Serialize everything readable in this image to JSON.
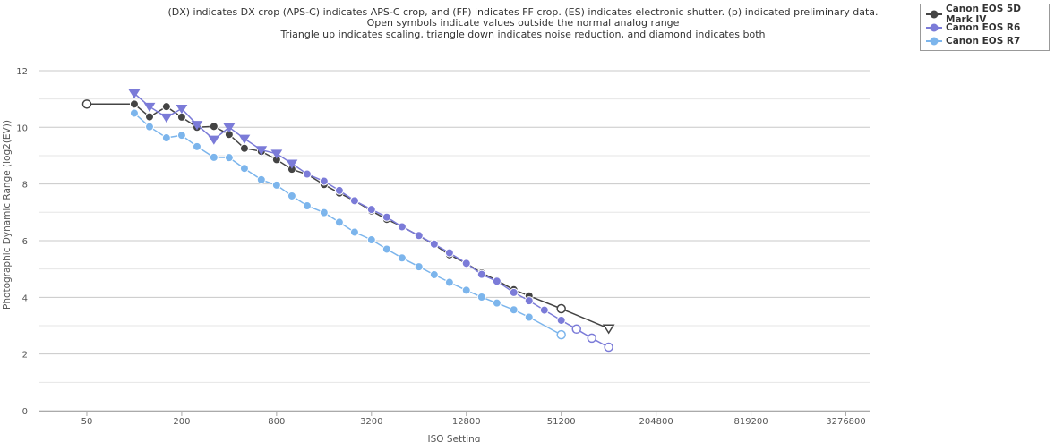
{
  "chart_data": {
    "type": "line",
    "title_lines": [
      "(DX) indicates DX crop (APS-C) indicates APS-C crop, and (FF) indicates FF crop. (ES) indicates electronic shutter. (p) indicated preliminary data.",
      "Open symbols indicate values outside the normal analog range",
      "Triangle up indicates scaling, triangle down indicates noise reduction, and diamond indicates both"
    ],
    "xlabel": "ISO Setting",
    "ylabel": "Photographic Dynamic Range (log2(EV))",
    "x_scale": "log2",
    "x_ticks": [
      50,
      200,
      800,
      3200,
      12800,
      51200,
      204800,
      819200,
      3276800
    ],
    "x_tick_labels": [
      "50",
      "200",
      "800",
      "3200",
      "12800",
      "51200",
      "204800",
      "819200",
      "3276800"
    ],
    "x_range": [
      25,
      4634000
    ],
    "ylim": [
      0,
      12.5
    ],
    "y_ticks": [
      0,
      2,
      4,
      6,
      8,
      10,
      12
    ],
    "y_tick_labels": [
      "0",
      "2",
      "4",
      "6",
      "8",
      "10",
      "12"
    ],
    "grid": true,
    "legend_position": "top-right",
    "series": [
      {
        "name": "Canon EOS 5D Mark IV",
        "color": "#444444",
        "points": [
          {
            "x": 50,
            "y": 10.82,
            "marker": "open-circle"
          },
          {
            "x": 100,
            "y": 10.82,
            "marker": "circle"
          },
          {
            "x": 125,
            "y": 10.37,
            "marker": "circle"
          },
          {
            "x": 160,
            "y": 10.73,
            "marker": "circle"
          },
          {
            "x": 200,
            "y": 10.36,
            "marker": "circle"
          },
          {
            "x": 250,
            "y": 10.0,
            "marker": "circle"
          },
          {
            "x": 320,
            "y": 10.03,
            "marker": "circle"
          },
          {
            "x": 400,
            "y": 9.75,
            "marker": "circle"
          },
          {
            "x": 500,
            "y": 9.26,
            "marker": "circle"
          },
          {
            "x": 640,
            "y": 9.15,
            "marker": "circle"
          },
          {
            "x": 800,
            "y": 8.86,
            "marker": "circle"
          },
          {
            "x": 1000,
            "y": 8.52,
            "marker": "circle"
          },
          {
            "x": 1250,
            "y": 8.34,
            "marker": "circle"
          },
          {
            "x": 1600,
            "y": 7.98,
            "marker": "circle"
          },
          {
            "x": 2000,
            "y": 7.68,
            "marker": "circle"
          },
          {
            "x": 2500,
            "y": 7.41,
            "marker": "circle"
          },
          {
            "x": 3200,
            "y": 7.05,
            "marker": "circle"
          },
          {
            "x": 4000,
            "y": 6.75,
            "marker": "circle"
          },
          {
            "x": 5000,
            "y": 6.5,
            "marker": "circle"
          },
          {
            "x": 6400,
            "y": 6.17,
            "marker": "circle"
          },
          {
            "x": 8000,
            "y": 5.86,
            "marker": "circle"
          },
          {
            "x": 10000,
            "y": 5.5,
            "marker": "circle"
          },
          {
            "x": 12800,
            "y": 5.2,
            "marker": "circle"
          },
          {
            "x": 16000,
            "y": 4.86,
            "marker": "circle"
          },
          {
            "x": 20000,
            "y": 4.6,
            "marker": "circle"
          },
          {
            "x": 25600,
            "y": 4.27,
            "marker": "circle"
          },
          {
            "x": 32000,
            "y": 4.05,
            "marker": "circle"
          },
          {
            "x": 51200,
            "y": 3.6,
            "marker": "open-circle"
          },
          {
            "x": 102400,
            "y": 2.9,
            "marker": "open-triangle-down"
          }
        ]
      },
      {
        "name": "Canon EOS R6",
        "color": "#7b7bd8",
        "points": [
          {
            "x": 100,
            "y": 11.2,
            "marker": "triangle-down"
          },
          {
            "x": 125,
            "y": 10.73,
            "marker": "triangle-down"
          },
          {
            "x": 160,
            "y": 10.35,
            "marker": "triangle-down"
          },
          {
            "x": 200,
            "y": 10.66,
            "marker": "triangle-down"
          },
          {
            "x": 250,
            "y": 10.09,
            "marker": "triangle-down"
          },
          {
            "x": 320,
            "y": 9.57,
            "marker": "triangle-down"
          },
          {
            "x": 400,
            "y": 10.0,
            "marker": "triangle-down"
          },
          {
            "x": 500,
            "y": 9.6,
            "marker": "triangle-down"
          },
          {
            "x": 640,
            "y": 9.2,
            "marker": "triangle-down"
          },
          {
            "x": 800,
            "y": 9.07,
            "marker": "triangle-down"
          },
          {
            "x": 1000,
            "y": 8.72,
            "marker": "triangle-down"
          },
          {
            "x": 1250,
            "y": 8.35,
            "marker": "circle"
          },
          {
            "x": 1600,
            "y": 8.1,
            "marker": "circle"
          },
          {
            "x": 2000,
            "y": 7.77,
            "marker": "circle"
          },
          {
            "x": 2500,
            "y": 7.41,
            "marker": "circle"
          },
          {
            "x": 3200,
            "y": 7.1,
            "marker": "circle"
          },
          {
            "x": 4000,
            "y": 6.83,
            "marker": "circle"
          },
          {
            "x": 5000,
            "y": 6.49,
            "marker": "circle"
          },
          {
            "x": 6400,
            "y": 6.18,
            "marker": "circle"
          },
          {
            "x": 8000,
            "y": 5.88,
            "marker": "circle"
          },
          {
            "x": 10000,
            "y": 5.57,
            "marker": "circle"
          },
          {
            "x": 12800,
            "y": 5.2,
            "marker": "circle"
          },
          {
            "x": 16000,
            "y": 4.81,
            "marker": "circle"
          },
          {
            "x": 20000,
            "y": 4.57,
            "marker": "circle"
          },
          {
            "x": 25600,
            "y": 4.17,
            "marker": "circle"
          },
          {
            "x": 32000,
            "y": 3.88,
            "marker": "circle"
          },
          {
            "x": 40000,
            "y": 3.55,
            "marker": "circle"
          },
          {
            "x": 51200,
            "y": 3.19,
            "marker": "circle"
          },
          {
            "x": 64000,
            "y": 2.88,
            "marker": "open-circle"
          },
          {
            "x": 80000,
            "y": 2.56,
            "marker": "open-circle"
          },
          {
            "x": 102400,
            "y": 2.24,
            "marker": "open-circle"
          }
        ]
      },
      {
        "name": "Canon EOS R7",
        "color": "#7cb5ec",
        "points": [
          {
            "x": 100,
            "y": 10.5,
            "marker": "circle"
          },
          {
            "x": 125,
            "y": 10.02,
            "marker": "circle"
          },
          {
            "x": 160,
            "y": 9.63,
            "marker": "circle"
          },
          {
            "x": 200,
            "y": 9.72,
            "marker": "circle"
          },
          {
            "x": 250,
            "y": 9.32,
            "marker": "circle"
          },
          {
            "x": 320,
            "y": 8.94,
            "marker": "circle"
          },
          {
            "x": 400,
            "y": 8.93,
            "marker": "circle"
          },
          {
            "x": 500,
            "y": 8.55,
            "marker": "circle"
          },
          {
            "x": 640,
            "y": 8.15,
            "marker": "circle"
          },
          {
            "x": 800,
            "y": 7.96,
            "marker": "circle"
          },
          {
            "x": 1000,
            "y": 7.58,
            "marker": "circle"
          },
          {
            "x": 1250,
            "y": 7.23,
            "marker": "circle"
          },
          {
            "x": 1600,
            "y": 6.99,
            "marker": "circle"
          },
          {
            "x": 2000,
            "y": 6.65,
            "marker": "circle"
          },
          {
            "x": 2500,
            "y": 6.3,
            "marker": "circle"
          },
          {
            "x": 3200,
            "y": 6.03,
            "marker": "circle"
          },
          {
            "x": 4000,
            "y": 5.7,
            "marker": "circle"
          },
          {
            "x": 5000,
            "y": 5.39,
            "marker": "circle"
          },
          {
            "x": 6400,
            "y": 5.08,
            "marker": "circle"
          },
          {
            "x": 8000,
            "y": 4.8,
            "marker": "circle"
          },
          {
            "x": 10000,
            "y": 4.53,
            "marker": "circle"
          },
          {
            "x": 12800,
            "y": 4.25,
            "marker": "circle"
          },
          {
            "x": 16000,
            "y": 4.01,
            "marker": "circle"
          },
          {
            "x": 20000,
            "y": 3.8,
            "marker": "circle"
          },
          {
            "x": 25600,
            "y": 3.56,
            "marker": "circle"
          },
          {
            "x": 32000,
            "y": 3.3,
            "marker": "circle"
          },
          {
            "x": 51200,
            "y": 2.68,
            "marker": "open-circle"
          }
        ]
      }
    ]
  },
  "legend": {
    "items": [
      {
        "label": "Canon EOS 5D Mark IV",
        "color": "#444444"
      },
      {
        "label": "Canon EOS R6",
        "color": "#7b7bd8"
      },
      {
        "label": "Canon EOS R7",
        "color": "#7cb5ec"
      }
    ]
  }
}
